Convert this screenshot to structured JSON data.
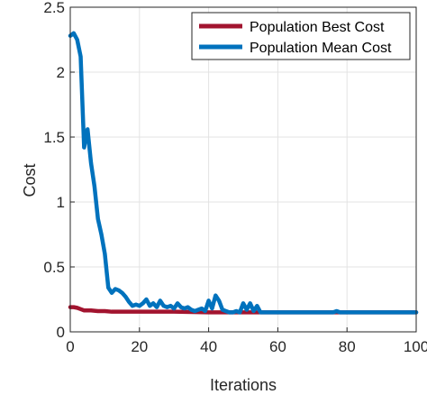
{
  "chart_data": {
    "type": "line",
    "title": "",
    "xlabel": "Iterations",
    "ylabel": "Cost",
    "xlim": [
      0,
      100
    ],
    "ylim": [
      0,
      2.5
    ],
    "xticks": [
      0,
      20,
      40,
      60,
      80,
      100
    ],
    "xtick_labels": [
      "0",
      "20",
      "40",
      "60",
      "80",
      "100"
    ],
    "yticks": [
      0,
      0.5,
      1,
      1.5,
      2,
      2.5
    ],
    "ytick_labels": [
      "0",
      "0.5",
      "1",
      "1.5",
      "2",
      "2.5"
    ],
    "grid": true,
    "legend_position": "top-right",
    "series": [
      {
        "name": "Population Best Cost",
        "color": "#a2142f",
        "x": [
          0,
          1,
          2,
          3,
          4,
          6,
          8,
          10,
          12,
          14,
          20,
          30,
          40,
          50,
          55,
          60,
          70,
          80,
          90,
          100
        ],
        "y": [
          0.19,
          0.19,
          0.185,
          0.175,
          0.165,
          0.165,
          0.16,
          0.16,
          0.155,
          0.155,
          0.155,
          0.155,
          0.15,
          0.15,
          0.15,
          0.15,
          0.15,
          0.15,
          0.15,
          0.15
        ]
      },
      {
        "name": "Population Mean Cost",
        "color": "#0072bd",
        "x": [
          0,
          1,
          2,
          3,
          4,
          5,
          6,
          7,
          8,
          9,
          10,
          11,
          12,
          13,
          14,
          15,
          16,
          17,
          18,
          19,
          20,
          21,
          22,
          23,
          24,
          25,
          26,
          27,
          28,
          29,
          30,
          31,
          32,
          33,
          34,
          35,
          36,
          37,
          38,
          39,
          40,
          41,
          42,
          43,
          44,
          45,
          46,
          47,
          48,
          49,
          50,
          51,
          52,
          53,
          54,
          55,
          60,
          70,
          76,
          77,
          78,
          80,
          90,
          100
        ],
        "y": [
          2.28,
          2.3,
          2.25,
          2.12,
          1.42,
          1.56,
          1.3,
          1.12,
          0.87,
          0.75,
          0.6,
          0.34,
          0.3,
          0.33,
          0.32,
          0.3,
          0.27,
          0.23,
          0.2,
          0.21,
          0.2,
          0.22,
          0.25,
          0.2,
          0.22,
          0.19,
          0.24,
          0.2,
          0.19,
          0.2,
          0.18,
          0.22,
          0.19,
          0.18,
          0.19,
          0.17,
          0.16,
          0.17,
          0.18,
          0.16,
          0.24,
          0.18,
          0.28,
          0.24,
          0.17,
          0.16,
          0.15,
          0.15,
          0.16,
          0.15,
          0.22,
          0.17,
          0.22,
          0.16,
          0.2,
          0.15,
          0.15,
          0.15,
          0.15,
          0.16,
          0.15,
          0.15,
          0.15,
          0.15
        ]
      }
    ]
  }
}
